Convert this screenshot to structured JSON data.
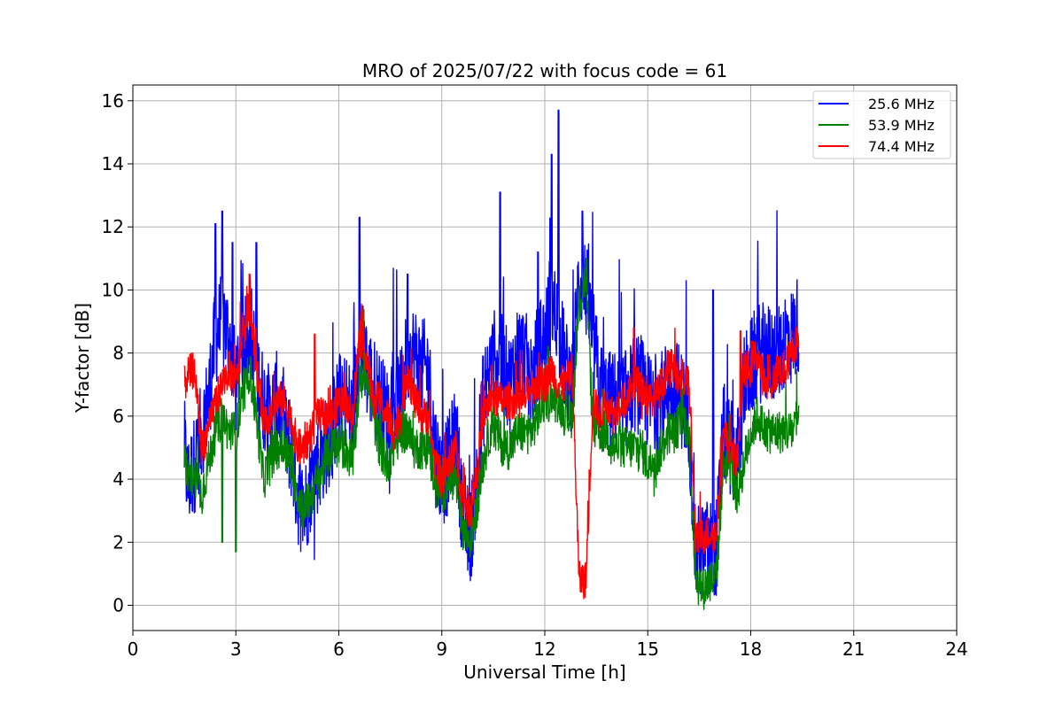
{
  "chart_data": {
    "type": "line",
    "title": "MRO of 2025/07/22 with focus code = 61",
    "xlabel": "Universal Time [h]",
    "ylabel": "Y-factor [dB]",
    "xlim": [
      0,
      24
    ],
    "ylim": [
      -0.8,
      16.5
    ],
    "x_ticks": [
      0,
      3,
      6,
      9,
      12,
      15,
      18,
      21,
      24
    ],
    "y_ticks": [
      0,
      2,
      4,
      6,
      8,
      10,
      12,
      14,
      16
    ],
    "grid": true,
    "legend_position": "top-right",
    "series": [
      {
        "name": "25.6 MHz",
        "color": "#0000ff",
        "x": [
          1.5,
          1.6,
          1.8,
          2.0,
          2.2,
          2.4,
          2.6,
          2.8,
          3.0,
          3.2,
          3.4,
          3.6,
          3.8,
          4.0,
          4.2,
          4.4,
          4.6,
          4.8,
          5.0,
          5.2,
          5.4,
          5.6,
          5.8,
          6.0,
          6.2,
          6.4,
          6.6,
          6.8,
          7.0,
          7.2,
          7.4,
          7.6,
          7.8,
          8.0,
          8.2,
          8.4,
          8.6,
          8.8,
          9.0,
          9.2,
          9.4,
          9.6,
          9.8,
          10.0,
          10.2,
          10.4,
          10.6,
          10.8,
          11.0,
          11.2,
          11.4,
          11.6,
          11.8,
          12.0,
          12.2,
          12.4,
          12.6,
          12.8,
          13.0,
          13.2,
          13.4,
          13.6,
          13.8,
          14.0,
          14.2,
          14.4,
          14.6,
          14.8,
          15.0,
          15.2,
          15.4,
          15.6,
          15.8,
          16.0,
          16.2,
          16.4,
          16.6,
          16.8,
          17.0,
          17.2,
          17.4,
          17.6,
          17.8,
          18.0,
          18.2,
          18.4,
          18.6,
          18.8,
          19.0,
          19.2,
          19.4
        ],
        "y": [
          5.0,
          3.8,
          4.5,
          5.5,
          6.5,
          8.5,
          9.0,
          8.5,
          7.0,
          8.5,
          9.0,
          7.5,
          6.5,
          6.0,
          6.5,
          5.5,
          5.0,
          3.5,
          3.0,
          4.0,
          4.5,
          5.0,
          5.5,
          6.5,
          6.5,
          6.0,
          8.5,
          7.5,
          7.0,
          6.5,
          6.0,
          6.5,
          6.5,
          8.0,
          8.0,
          7.5,
          7.5,
          5.0,
          4.0,
          4.5,
          5.5,
          3.0,
          2.0,
          3.5,
          6.5,
          7.5,
          8.0,
          7.5,
          7.0,
          8.0,
          8.0,
          7.0,
          8.0,
          8.5,
          9.5,
          9.0,
          7.5,
          7.0,
          10.5,
          10.0,
          8.5,
          7.0,
          6.5,
          6.5,
          6.5,
          6.5,
          7.0,
          7.0,
          6.5,
          6.5,
          6.5,
          7.0,
          7.0,
          6.5,
          6.0,
          1.5,
          1.8,
          1.8,
          1.8,
          5.5,
          5.0,
          4.5,
          7.0,
          7.5,
          8.0,
          8.0,
          8.0,
          8.0,
          8.5,
          8.5,
          9.0
        ],
        "peaks": [
          [
            2.4,
            12.1
          ],
          [
            2.6,
            12.5
          ],
          [
            2.9,
            11.5
          ],
          [
            3.6,
            11.5
          ],
          [
            6.6,
            12.3
          ],
          [
            8.0,
            10.5
          ],
          [
            10.7,
            13.1
          ],
          [
            11.8,
            11.2
          ],
          [
            12.2,
            14.3
          ],
          [
            12.4,
            15.7
          ],
          [
            13.1,
            12.5
          ],
          [
            16.9,
            10.0
          ]
        ]
      },
      {
        "name": "53.9 MHz",
        "color": "#008000",
        "x": [
          1.5,
          1.6,
          1.8,
          2.0,
          2.2,
          2.4,
          2.6,
          2.8,
          3.0,
          3.2,
          3.4,
          3.6,
          3.8,
          4.0,
          4.2,
          4.4,
          4.6,
          4.8,
          5.0,
          5.2,
          5.4,
          5.6,
          5.8,
          6.0,
          6.2,
          6.4,
          6.6,
          6.8,
          7.0,
          7.2,
          7.4,
          7.6,
          7.8,
          8.0,
          8.2,
          8.4,
          8.6,
          8.8,
          9.0,
          9.2,
          9.4,
          9.6,
          9.8,
          10.0,
          10.2,
          10.4,
          10.6,
          10.8,
          11.0,
          11.2,
          11.4,
          11.6,
          11.8,
          12.0,
          12.2,
          12.4,
          12.6,
          12.8,
          13.0,
          13.2,
          13.4,
          13.6,
          13.8,
          14.0,
          14.2,
          14.4,
          14.6,
          14.8,
          15.0,
          15.2,
          15.4,
          15.6,
          15.8,
          16.0,
          16.2,
          16.4,
          16.6,
          16.8,
          17.0,
          17.2,
          17.4,
          17.6,
          17.8,
          18.0,
          18.2,
          18.4,
          18.6,
          18.8,
          19.0,
          19.2,
          19.4
        ],
        "y": [
          4.5,
          4.0,
          4.2,
          3.5,
          4.5,
          5.5,
          6.0,
          5.5,
          5.5,
          6.5,
          7.5,
          6.0,
          4.0,
          4.5,
          5.0,
          5.0,
          4.5,
          3.5,
          3.0,
          3.5,
          4.0,
          4.5,
          5.0,
          5.0,
          5.0,
          4.5,
          7.0,
          7.5,
          6.0,
          5.0,
          4.5,
          5.0,
          5.5,
          5.5,
          5.0,
          5.0,
          5.0,
          4.0,
          3.5,
          4.0,
          4.0,
          2.5,
          2.0,
          3.0,
          4.5,
          5.5,
          5.5,
          5.0,
          5.0,
          5.5,
          5.5,
          5.5,
          6.0,
          6.5,
          6.5,
          6.5,
          6.0,
          6.0,
          9.5,
          10.5,
          5.5,
          5.5,
          5.5,
          5.0,
          5.0,
          5.0,
          5.0,
          5.0,
          4.5,
          4.5,
          5.0,
          5.5,
          5.5,
          6.0,
          5.5,
          0.8,
          0.5,
          0.8,
          0.8,
          4.5,
          4.5,
          3.5,
          4.5,
          5.5,
          6.0,
          5.5,
          5.5,
          5.5,
          5.5,
          5.5,
          6.0
        ],
        "peaks": [
          [
            2.6,
            2.0
          ],
          [
            3.0,
            1.7
          ],
          [
            13.2,
            11.0
          ]
        ]
      },
      {
        "name": "74.4 MHz",
        "color": "#ff0000",
        "x": [
          1.5,
          1.6,
          1.8,
          2.0,
          2.2,
          2.4,
          2.6,
          2.8,
          3.0,
          3.2,
          3.4,
          3.6,
          3.8,
          4.0,
          4.2,
          4.4,
          4.6,
          4.8,
          5.0,
          5.2,
          5.4,
          5.6,
          5.8,
          6.0,
          6.2,
          6.4,
          6.6,
          6.8,
          7.0,
          7.2,
          7.4,
          7.6,
          7.8,
          8.0,
          8.2,
          8.4,
          8.6,
          8.8,
          9.0,
          9.2,
          9.4,
          9.6,
          9.8,
          10.0,
          10.2,
          10.4,
          10.6,
          10.8,
          11.0,
          11.2,
          11.4,
          11.6,
          11.8,
          12.0,
          12.2,
          12.4,
          12.6,
          12.8,
          13.0,
          13.2,
          13.4,
          13.6,
          13.8,
          14.0,
          14.2,
          14.4,
          14.6,
          14.8,
          15.0,
          15.2,
          15.4,
          15.6,
          15.8,
          16.0,
          16.2,
          16.4,
          16.6,
          16.8,
          17.0,
          17.2,
          17.4,
          17.6,
          17.8,
          18.0,
          18.2,
          18.4,
          18.6,
          18.8,
          19.0,
          19.2,
          19.4
        ],
        "y": [
          7.0,
          7.3,
          7.5,
          5.0,
          5.5,
          6.5,
          7.0,
          7.5,
          7.0,
          8.5,
          9.5,
          7.5,
          6.0,
          6.0,
          6.5,
          6.5,
          6.0,
          5.0,
          5.0,
          5.5,
          6.0,
          6.0,
          6.0,
          6.5,
          6.5,
          6.0,
          8.5,
          8.0,
          6.5,
          6.5,
          6.0,
          5.5,
          6.0,
          7.5,
          6.5,
          6.0,
          6.0,
          4.5,
          4.0,
          4.5,
          5.0,
          3.5,
          3.0,
          4.0,
          6.0,
          6.5,
          6.5,
          6.5,
          6.5,
          6.5,
          6.5,
          7.0,
          7.0,
          7.0,
          7.5,
          7.0,
          7.0,
          7.5,
          0.8,
          0.8,
          6.5,
          6.0,
          6.5,
          6.0,
          6.5,
          6.5,
          7.0,
          7.0,
          6.5,
          6.5,
          7.0,
          7.5,
          7.5,
          7.0,
          7.0,
          2.0,
          2.2,
          2.3,
          2.2,
          5.5,
          5.0,
          4.5,
          7.5,
          7.5,
          8.0,
          7.0,
          7.0,
          7.5,
          7.5,
          8.0,
          8.5
        ],
        "peaks": [
          [
            3.4,
            10.5
          ],
          [
            5.3,
            8.6
          ],
          [
            14.6,
            8.8
          ],
          [
            16.0,
            7.8
          ],
          [
            17.7,
            8.7
          ]
        ]
      }
    ]
  }
}
